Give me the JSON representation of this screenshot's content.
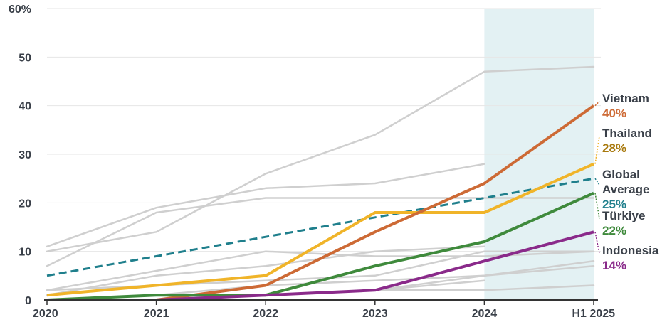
{
  "chart_data": {
    "type": "line",
    "title": "",
    "xlabel": "",
    "ylabel": "",
    "categories": [
      "2020",
      "2021",
      "2022",
      "2023",
      "2024",
      "H1 2025"
    ],
    "ylim": [
      0,
      60
    ],
    "yticks": [
      "0",
      "10",
      "20",
      "30",
      "40",
      "50",
      "60%"
    ],
    "y_tick_values": [
      0,
      10,
      20,
      30,
      40,
      50,
      60
    ],
    "grid": true,
    "highlight_categories": [
      "2024",
      "H1 2025"
    ],
    "highlight_color": "#e3f1f3",
    "grid_color": "#e6e6e6",
    "axis_color": "#333333",
    "tick_color": "#3a4049",
    "background_series": [
      {
        "values": [
          10,
          14,
          26,
          34,
          47,
          48
        ]
      },
      {
        "values": [
          11,
          19,
          23,
          24,
          28,
          null
        ]
      },
      {
        "values": [
          7,
          18,
          21,
          21,
          21,
          21
        ]
      },
      {
        "values": [
          2,
          6,
          10,
          9,
          9,
          10
        ]
      },
      {
        "values": [
          1,
          5,
          7,
          10,
          11,
          null
        ]
      },
      {
        "values": [
          2,
          3,
          4,
          5,
          10,
          10
        ]
      },
      {
        "values": [
          0,
          1,
          3,
          4,
          5,
          8
        ]
      },
      {
        "values": [
          0,
          1,
          1,
          2,
          5,
          7
        ]
      },
      {
        "values": [
          0,
          0,
          1,
          2,
          2,
          3
        ]
      },
      {
        "values": [
          0,
          0,
          1,
          2,
          4,
          null
        ]
      }
    ],
    "background_color": "#cfcfcf",
    "series": [
      {
        "name": "Global Average",
        "label_lines": [
          "Global",
          "Average"
        ],
        "value_label": "25%",
        "values": [
          5,
          9,
          13,
          17,
          21,
          25
        ],
        "color": "#1f7f8c",
        "label_color": "#1f7f8c",
        "dashed": true
      },
      {
        "name": "Thailand",
        "label_lines": [
          "Thailand"
        ],
        "value_label": "28%",
        "values": [
          1,
          3,
          5,
          18,
          18,
          28
        ],
        "color": "#f0b429",
        "label_color": "#a8790d",
        "dashed": false
      },
      {
        "name": "Vietnam",
        "label_lines": [
          "Vietnam"
        ],
        "value_label": "40%",
        "values": [
          0,
          0,
          3,
          14,
          24,
          40
        ],
        "color": "#cd6a35",
        "label_color": "#cd6a35",
        "dashed": false
      },
      {
        "name": "Türkiye",
        "label_lines": [
          "Türkiye"
        ],
        "value_label": "22%",
        "values": [
          0,
          1,
          1,
          7,
          12,
          22
        ],
        "color": "#3f8a3c",
        "label_color": "#3f8a3c",
        "dashed": false
      },
      {
        "name": "Indonesia",
        "label_lines": [
          "Indonesia"
        ],
        "value_label": "14%",
        "values": [
          0,
          0,
          1,
          2,
          8,
          14
        ],
        "color": "#8a2a8a",
        "label_color": "#8a2a8a",
        "dashed": false
      }
    ]
  }
}
